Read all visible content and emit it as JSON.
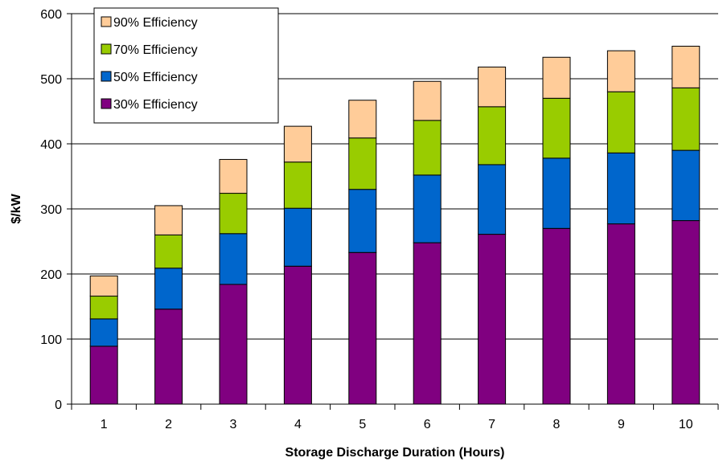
{
  "chart_data": {
    "type": "bar",
    "stacked": true,
    "xlabel": "Storage Discharge Duration (Hours)",
    "ylabel": "$/kW",
    "categories": [
      "1",
      "2",
      "3",
      "4",
      "5",
      "6",
      "7",
      "8",
      "9",
      "10"
    ],
    "ylim": [
      0,
      600
    ],
    "yticks": [
      0,
      100,
      200,
      300,
      400,
      500,
      600
    ],
    "grid": true,
    "legend_position": "top-left",
    "series": [
      {
        "name": "30% Efficiency",
        "color": "#800080",
        "values": [
          89,
          146,
          184,
          212,
          233,
          248,
          261,
          270,
          277,
          282
        ]
      },
      {
        "name": "50% Efficiency",
        "color": "#0066CC",
        "values": [
          42,
          63,
          78,
          89,
          97,
          104,
          107,
          108,
          109,
          108
        ]
      },
      {
        "name": "70% Efficiency",
        "color": "#99CC00",
        "values": [
          35,
          51,
          62,
          71,
          79,
          84,
          89,
          92,
          94,
          96
        ]
      },
      {
        "name": "90% Efficiency",
        "color": "#FFCC99",
        "values": [
          31,
          45,
          52,
          55,
          58,
          60,
          61,
          63,
          63,
          64
        ]
      }
    ]
  }
}
